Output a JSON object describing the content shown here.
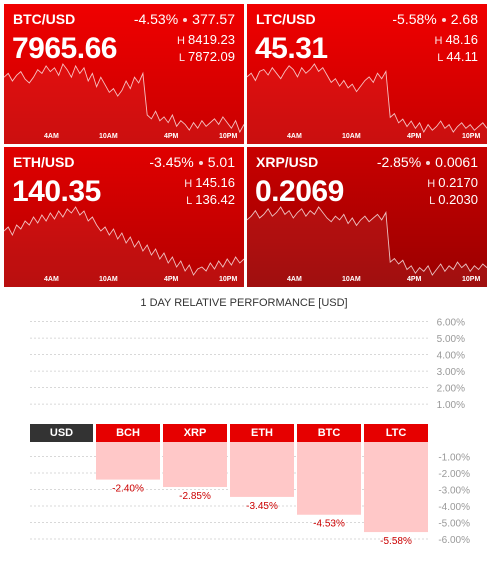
{
  "tiles": [
    {
      "pair": "BTC/USD",
      "change_pct": "-4.53%",
      "change_abs": "377.57",
      "price": "7965.66",
      "high_label": "H",
      "high": "8419.23",
      "low_label": "L",
      "low": "7872.09",
      "color_top": "#f00000",
      "color_bottom": "#c80000",
      "series": [
        50,
        48,
        52,
        49,
        47,
        51,
        53,
        50,
        46,
        48,
        44,
        47,
        45,
        49,
        43,
        46,
        50,
        44,
        48,
        45,
        52,
        48,
        55,
        50,
        54,
        58,
        56,
        60,
        57,
        52,
        56,
        50,
        53,
        48,
        70,
        72,
        68,
        73,
        71,
        74,
        70,
        76,
        73,
        75,
        78,
        74,
        77,
        73,
        76,
        74,
        72,
        75,
        71,
        74,
        77,
        73,
        79,
        75
      ]
    },
    {
      "pair": "LTC/USD",
      "change_pct": "-5.58%",
      "change_abs": "2.68",
      "price": "45.31",
      "high_label": "H",
      "high": "48.16",
      "low_label": "L",
      "low": "44.11",
      "color_top": "#f00000",
      "color_bottom": "#c60000",
      "series": [
        52,
        50,
        54,
        49,
        48,
        51,
        47,
        50,
        53,
        49,
        46,
        48,
        52,
        47,
        50,
        48,
        45,
        49,
        47,
        51,
        55,
        53,
        57,
        54,
        58,
        56,
        60,
        57,
        54,
        52,
        55,
        50,
        53,
        49,
        74,
        72,
        77,
        75,
        79,
        76,
        80,
        77,
        82,
        78,
        81,
        79,
        76,
        80,
        78,
        82,
        79,
        77,
        80,
        78,
        81,
        79,
        77,
        80
      ]
    },
    {
      "pair": "ETH/USD",
      "change_pct": "-3.45%",
      "change_abs": "5.01",
      "price": "140.35",
      "high_label": "H",
      "high": "145.16",
      "low_label": "L",
      "low": "136.42",
      "color_top": "#e00000",
      "color_bottom": "#b40000",
      "series": [
        60,
        58,
        62,
        57,
        59,
        55,
        57,
        53,
        56,
        52,
        55,
        51,
        54,
        50,
        53,
        49,
        51,
        48,
        52,
        50,
        55,
        53,
        57,
        60,
        58,
        62,
        59,
        64,
        61,
        66,
        63,
        68,
        65,
        70,
        67,
        72,
        69,
        74,
        71,
        76,
        73,
        78,
        75,
        80,
        77,
        82,
        79,
        78,
        80,
        76,
        79,
        75,
        78,
        74,
        77,
        73,
        76,
        74
      ]
    },
    {
      "pair": "XRP/USD",
      "change_pct": "-2.85%",
      "change_abs": "0.0061",
      "price": "0.2069",
      "high_label": "H",
      "high": "0.2170",
      "low_label": "L",
      "low": "0.2030",
      "color_top": "#c80000",
      "color_bottom": "#9a0000",
      "series": [
        55,
        53,
        50,
        54,
        52,
        49,
        53,
        51,
        48,
        52,
        50,
        54,
        51,
        49,
        53,
        50,
        52,
        48,
        51,
        54,
        56,
        53,
        55,
        52,
        57,
        54,
        58,
        55,
        53,
        56,
        54,
        52,
        55,
        51,
        78,
        76,
        79,
        77,
        82,
        80,
        84,
        81,
        83,
        80,
        85,
        82,
        79,
        83,
        80,
        82,
        78,
        81,
        79,
        83,
        80,
        82,
        79,
        81
      ]
    }
  ],
  "time_ticks": [
    "4AM",
    "10AM",
    "4PM",
    "10PM"
  ],
  "performance": {
    "title": "1 DAY RELATIVE PERFORMANCE  [USD]",
    "base_label": "USD",
    "coins": [
      "BCH",
      "XRP",
      "ETH",
      "BTC",
      "LTC"
    ],
    "values": [
      -2.4,
      -2.85,
      -3.45,
      -4.53,
      -5.58
    ],
    "value_labels": [
      "-2.40%",
      "-2.85%",
      "-3.45%",
      "-4.53%",
      "-5.58%"
    ],
    "pos_ticks": [
      "6.00%",
      "5.00%",
      "4.00%",
      "3.00%",
      "2.00%",
      "1.00%"
    ],
    "neg_ticks": [
      "-1.00%",
      "-2.00%",
      "-3.00%",
      "-4.00%",
      "-5.00%",
      "-6.00%"
    ],
    "bar_color": "#ffc8c8",
    "label_color": "#cc0000"
  },
  "chart_data": {
    "type": "bar",
    "title": "1 DAY RELATIVE PERFORMANCE  [USD]",
    "categories": [
      "BCH",
      "XRP",
      "ETH",
      "BTC",
      "LTC"
    ],
    "values": [
      -2.4,
      -2.85,
      -3.45,
      -4.53,
      -5.58
    ],
    "ylim": [
      -6,
      6
    ],
    "grid": true,
    "xlabel": "",
    "ylabel": ""
  }
}
